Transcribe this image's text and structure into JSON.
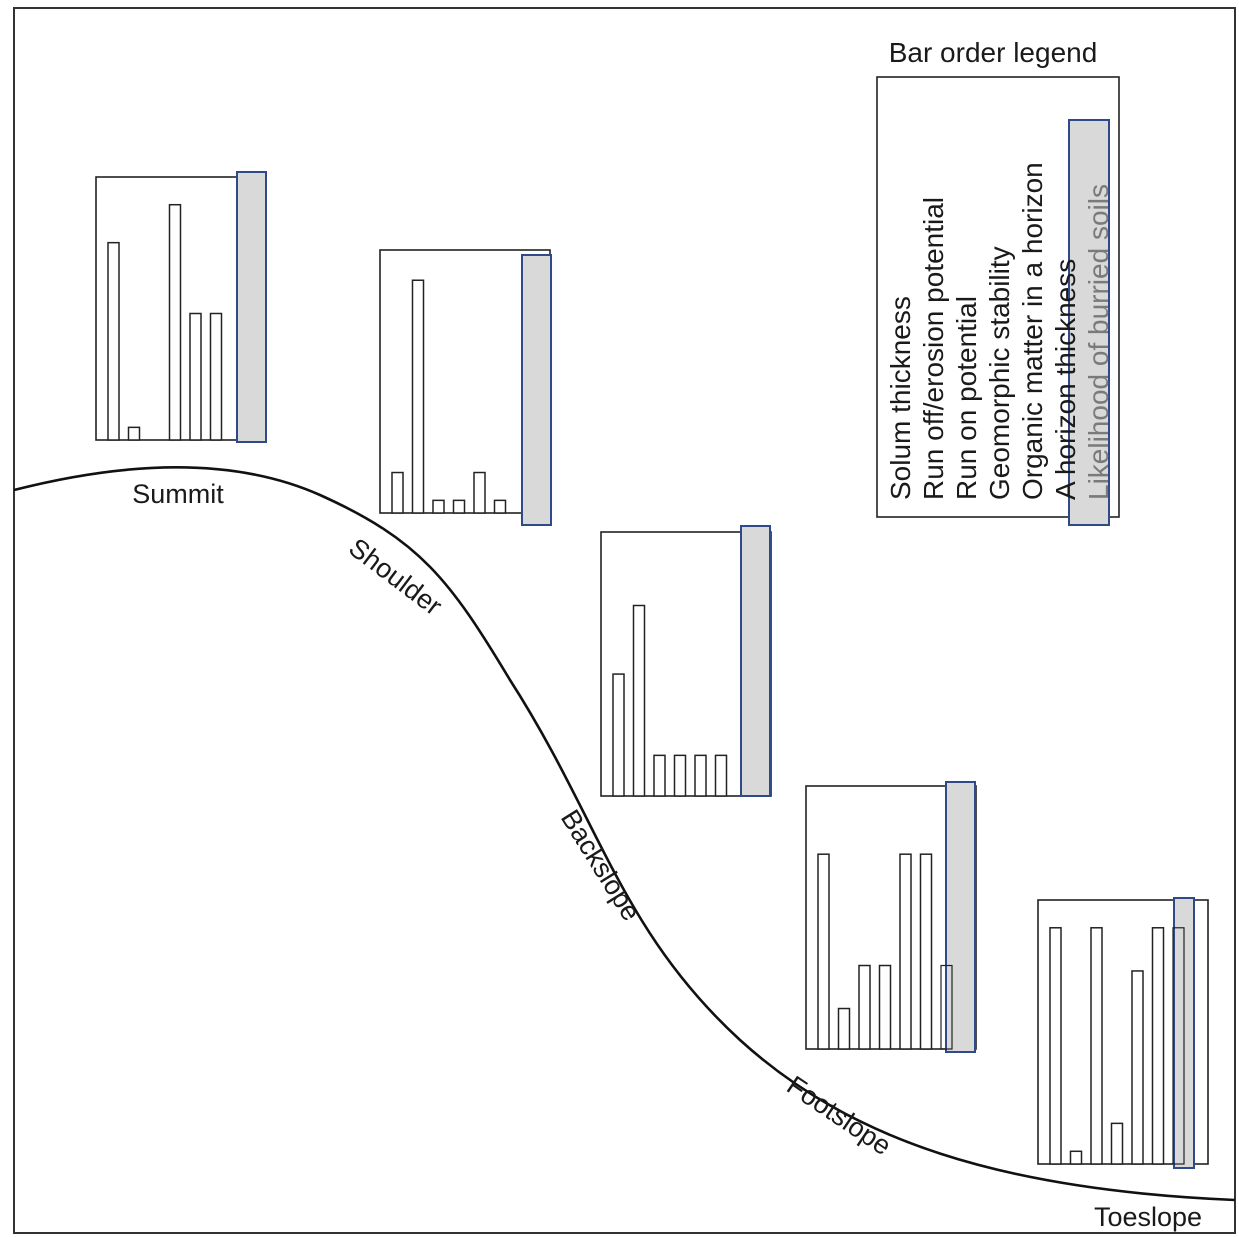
{
  "legend": {
    "title": "Bar order legend",
    "items": [
      "Solum thickness",
      "Run off/erosion potential",
      "Run on potential",
      "Geomorphic stability",
      "Organic matter in a horizon",
      "A horizon thickness",
      "Likelihood of burried soils"
    ],
    "highlighted_index": 6
  },
  "positions": [
    {
      "label": "Summit",
      "bars": [
        0.78,
        0.05,
        0,
        0.93,
        0.5,
        0.5,
        0
      ]
    },
    {
      "label": "Shoulder",
      "bars": [
        0.16,
        0.92,
        0.05,
        0.05,
        0.16,
        0.05,
        0
      ]
    },
    {
      "label": "Backslope",
      "bars": [
        0.48,
        0.75,
        0.16,
        0.16,
        0.16,
        0.16,
        0
      ]
    },
    {
      "label": "Footslope",
      "bars": [
        0.77,
        0.16,
        0.33,
        0.33,
        0.77,
        0.77,
        0.33
      ]
    },
    {
      "label": "Toeslope",
      "bars": [
        0.93,
        0.05,
        0.93,
        0.16,
        0.76,
        0.93,
        0.93
      ]
    }
  ],
  "colors": {
    "highlight_fill": "#d9d9d9",
    "highlight_stroke": "#2e4a8a",
    "line": "#111111"
  }
}
